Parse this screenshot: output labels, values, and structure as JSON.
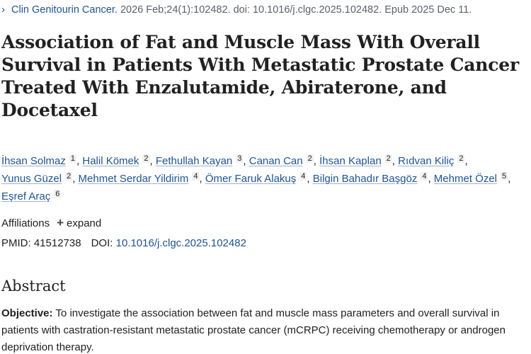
{
  "citation": {
    "journal": "Clin Genitourin Cancer.",
    "details": "2026 Feb;24(1):102482. doi: 10.1016/j.clgc.2025.102482. Epub 2025 Dec 11."
  },
  "article": {
    "title": "Association of Fat and Muscle Mass With Overall Survival in Patients With Metastatic Prostate Cancer Treated With Enzalutamide, Abiraterone, and Docetaxel"
  },
  "authors": [
    {
      "name": "İhsan Solmaz",
      "aff": "1"
    },
    {
      "name": "Halil Kömek",
      "aff": "2"
    },
    {
      "name": "Fethullah Kayan",
      "aff": "3"
    },
    {
      "name": "Canan Can",
      "aff": "2"
    },
    {
      "name": "İhsan Kaplan",
      "aff": "2"
    },
    {
      "name": "Rıdvan Kiliç",
      "aff": "2"
    },
    {
      "name": "Yunus Güzel",
      "aff": "2"
    },
    {
      "name": "Mehmet Serdar Yildirim",
      "aff": "4"
    },
    {
      "name": "Ömer Faruk Alakuş",
      "aff": "4"
    },
    {
      "name": "Bilgin Bahadır Başgöz",
      "aff": "4"
    },
    {
      "name": "Mehmet Özel",
      "aff": "5"
    },
    {
      "name": "Eşref Araç",
      "aff": "6"
    }
  ],
  "affiliations": {
    "label": "Affiliations",
    "expand_label": "expand"
  },
  "identifiers": {
    "pmid_label": "PMID:",
    "pmid": "41512738",
    "doi_label": "DOI:",
    "doi": "10.1016/j.clgc.2025.102482"
  },
  "abstract": {
    "heading": "Abstract",
    "objective_label": "Objective:",
    "objective_text": "To investigate the association between fat and muscle mass parameters and overall survival in patients with castration-resistant metastatic prostate cancer (mCRPC) receiving chemotherapy or androgen deprivation therapy."
  },
  "colors": {
    "link": "#205493",
    "text": "#212121"
  }
}
